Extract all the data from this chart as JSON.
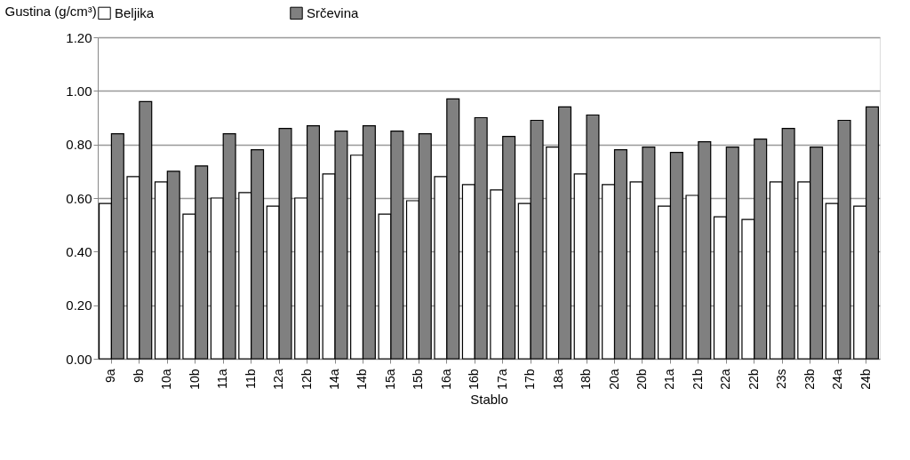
{
  "chart_data": {
    "type": "bar",
    "xlabel": "Stablo",
    "ylabel": "Gustina (g/cm³)",
    "categories": [
      "9a",
      "9b",
      "10a",
      "10b",
      "11a",
      "11b",
      "12a",
      "12b",
      "14a",
      "14b",
      "15a",
      "15b",
      "16a",
      "16b",
      "17a",
      "17b",
      "18a",
      "18b",
      "20a",
      "20b",
      "21a",
      "21b",
      "22a",
      "22b",
      "23s",
      "23b",
      "24a",
      "24b"
    ],
    "series": [
      {
        "name": "Beljika",
        "color": "#ffffff",
        "values": [
          0.58,
          0.68,
          0.66,
          0.54,
          0.6,
          0.62,
          0.57,
          0.6,
          0.69,
          0.76,
          0.54,
          0.59,
          0.68,
          0.65,
          0.63,
          0.58,
          0.79,
          0.69,
          0.65,
          0.66,
          0.57,
          0.61,
          0.53,
          0.52,
          0.66,
          0.66,
          0.58,
          0.57
        ]
      },
      {
        "name": "Srčevina",
        "color": "#808080",
        "values": [
          0.84,
          0.96,
          0.7,
          0.72,
          0.84,
          0.78,
          0.86,
          0.87,
          0.85,
          0.87,
          0.85,
          0.84,
          0.97,
          0.9,
          0.83,
          0.89,
          0.94,
          0.91,
          0.78,
          0.79,
          0.77,
          0.81,
          0.79,
          0.82,
          0.86,
          0.79,
          0.89,
          0.94
        ]
      }
    ],
    "ylim": [
      0,
      1.2
    ],
    "yticks": [
      {
        "value": 0,
        "label": "0.00"
      },
      {
        "value": 0.2,
        "label": "0.20"
      },
      {
        "value": 0.4,
        "label": "0.40"
      },
      {
        "value": 0.6,
        "label": "0.60"
      },
      {
        "value": 0.8,
        "label": "0.80"
      },
      {
        "value": 1.0,
        "label": "1.00"
      },
      {
        "value": 1.2,
        "label": "1.20"
      }
    ],
    "grid": "y",
    "legend": "top"
  }
}
